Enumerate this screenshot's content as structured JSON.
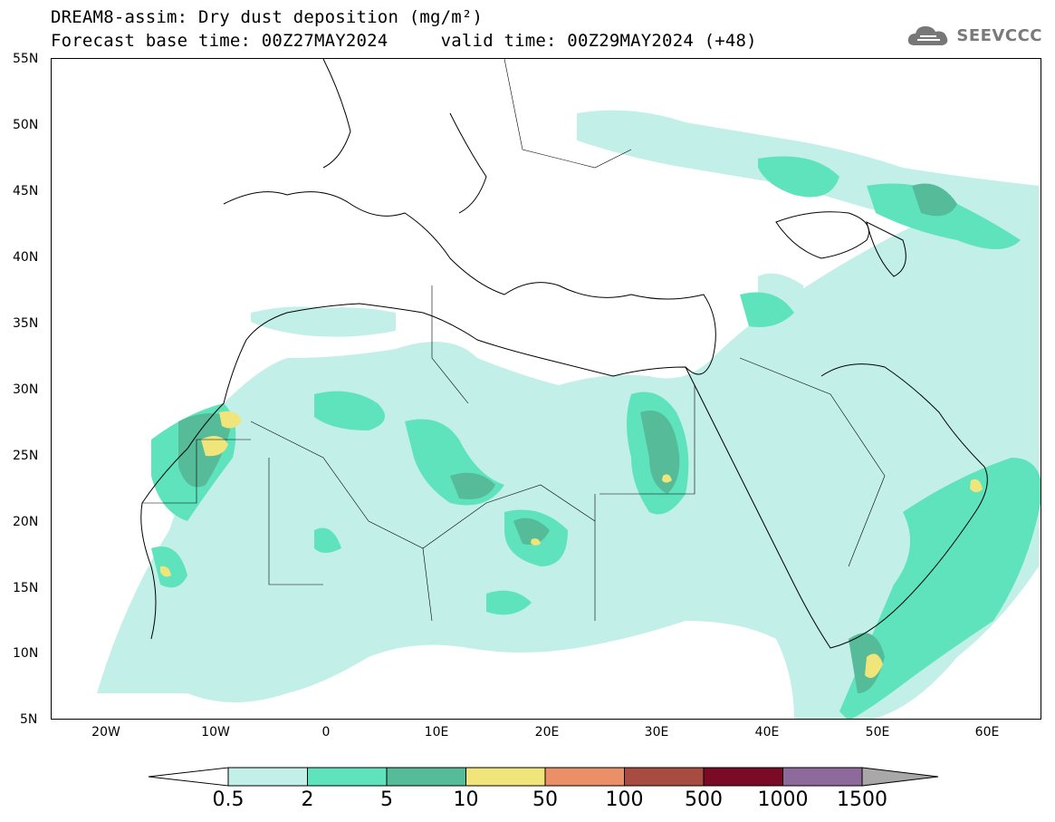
{
  "title": {
    "line1": "DREAM8-assim: Dry dust deposition (mg/m²)",
    "line2": "Forecast base time: 00Z27MAY2024     valid time: 00Z29MAY2024 (+48)"
  },
  "logo": {
    "text": "SEEVCCC",
    "icon": "cloud-icon"
  },
  "map": {
    "lat_labels": [
      "55N",
      "50N",
      "45N",
      "40N",
      "35N",
      "30N",
      "25N",
      "20N",
      "15N",
      "10N",
      "5N"
    ],
    "lon_labels": [
      "20W",
      "10W",
      "0",
      "10E",
      "20E",
      "30E",
      "40E",
      "50E",
      "60E"
    ],
    "lon_range": [
      -25,
      65
    ],
    "lat_range": [
      5,
      55
    ]
  },
  "colorbar": {
    "labels": [
      "0.5",
      "2",
      "5",
      "10",
      "50",
      "100",
      "500",
      "1000",
      "1500"
    ],
    "colors": [
      "#c2efe8",
      "#5ee3bd",
      "#56bb98",
      "#f0e57a",
      "#ea8f68",
      "#a84b40",
      "#7b0a26",
      "#8e6a9c"
    ],
    "under_color": "#ffffff",
    "over_color": "#a8a8a8"
  },
  "colors": {
    "level1": "#c2efe8",
    "level2": "#5ee3bd",
    "level3": "#56bb98",
    "level4": "#f0e57a"
  }
}
